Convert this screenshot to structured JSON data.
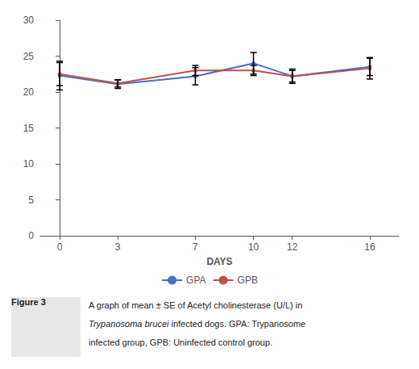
{
  "chart_data": {
    "type": "line",
    "xlabel": "DAYS",
    "x": [
      0,
      3,
      7,
      10,
      12,
      16
    ],
    "series": [
      {
        "name": "GPA",
        "color": "#4472C4",
        "values": [
          22.3,
          21.1,
          22.2,
          24.0,
          22.2,
          23.5
        ],
        "errors": [
          2.0,
          0.6,
          1.2,
          1.5,
          1.0,
          1.2
        ]
      },
      {
        "name": "GPB",
        "color": "#C0504D",
        "values": [
          22.5,
          21.2,
          23.0,
          23.0,
          22.2,
          23.3
        ],
        "errors": [
          1.6,
          0.5,
          0.7,
          0.7,
          0.8,
          1.5
        ]
      }
    ],
    "xlim": [
      -1,
      17.5
    ],
    "xticks": [
      0,
      3,
      7,
      10,
      12,
      16
    ],
    "ylim": [
      0,
      30
    ],
    "yticks": [
      0,
      5,
      10,
      15,
      20,
      25,
      30
    ],
    "grid": false,
    "legend": "bottom",
    "annotations": [
      "Figure 3",
      "A graph of mean ± SE of Acetyl cholinesterase (U/L) in",
      "Trypanosoma brucei",
      " infected dogs. GPA: Trypanosome",
      "infected group, GPB: Uninfected control group."
    ]
  }
}
